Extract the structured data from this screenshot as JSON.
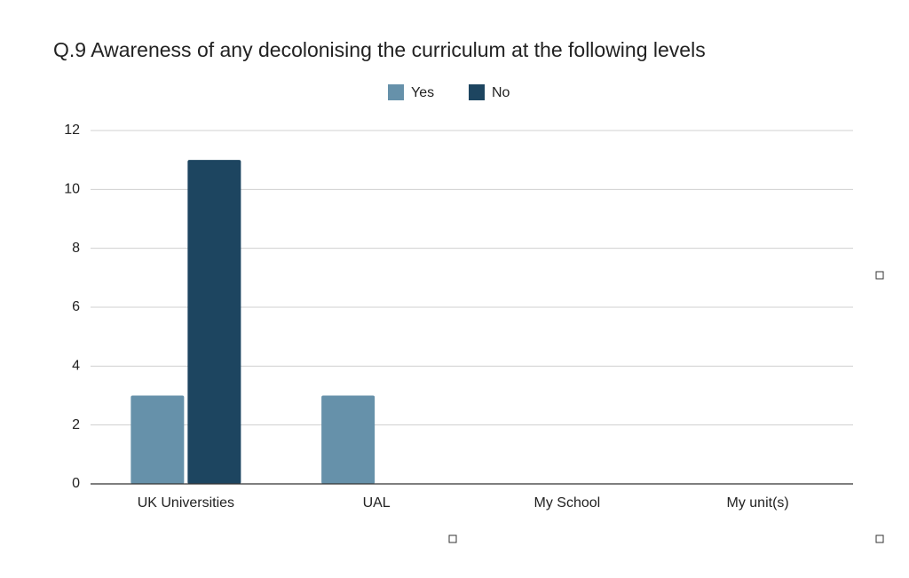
{
  "chart_data": {
    "type": "bar",
    "title": "Q.9 Awareness of any decolonising the curriculum at the following levels",
    "categories": [
      "UK Universities",
      "UAL",
      "My School",
      "My unit(s)"
    ],
    "series": [
      {
        "name": "Yes",
        "color": "#6691aa",
        "values": [
          3,
          3,
          0,
          0
        ]
      },
      {
        "name": "No",
        "color": "#1d4560",
        "values": [
          11,
          0,
          0,
          0
        ]
      }
    ],
    "ylim": [
      0,
      12
    ],
    "yticks": [
      0,
      2,
      4,
      6,
      8,
      10,
      12
    ],
    "grid": true,
    "legend": "top"
  }
}
